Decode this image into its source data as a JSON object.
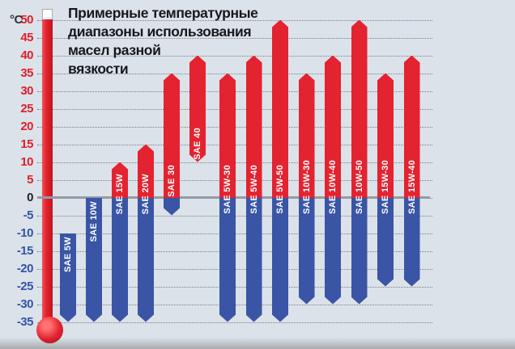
{
  "title": {
    "lines": [
      "Примерные температурные",
      "диапазоны использования",
      "масел разной",
      "вязкости"
    ]
  },
  "axis": {
    "unit": "°C",
    "ticks": [
      50,
      45,
      40,
      35,
      30,
      25,
      20,
      15,
      10,
      5,
      0,
      -5,
      -10,
      -15,
      -20,
      -25,
      -30,
      -35
    ]
  },
  "colors": {
    "background": "#dce2e9",
    "red": "#e32330",
    "blue": "#3a55a5",
    "zero_line": "#949ba5",
    "tick_positive": "#de1f2d",
    "tick_negative": "#2f55a8",
    "tick_zero": "#1d1e22"
  },
  "chart_data": {
    "type": "bar",
    "title": "Примерные температурные диапазоны использования масел разной вязкости",
    "ylabel": "°C",
    "ylim": [
      -35,
      50
    ],
    "grid": "dotted horizontal lines every 5°C",
    "legend_position": "none",
    "orientation": "vertical range bars, red above 0°C, blue below 0°C",
    "bars": [
      {
        "label": "SAE 5W",
        "min_c": -35,
        "max_c": -10
      },
      {
        "label": "SAE 10W",
        "min_c": -35,
        "max_c": 0
      },
      {
        "label": "SAE 15W",
        "min_c": -35,
        "max_c": 10
      },
      {
        "label": "SAE 20W",
        "min_c": -35,
        "max_c": 15
      },
      {
        "label": "SAE 30",
        "min_c": -5,
        "max_c": 35
      },
      {
        "label": "SAE 40",
        "min_c": 10,
        "max_c": 40
      },
      {
        "label": "SAE 5W-30",
        "min_c": -35,
        "max_c": 35
      },
      {
        "label": "SAE 5W-40",
        "min_c": -35,
        "max_c": 40
      },
      {
        "label": "SAE 5W-50",
        "min_c": -35,
        "max_c": 50
      },
      {
        "label": "SAE 10W-30",
        "min_c": -30,
        "max_c": 35
      },
      {
        "label": "SAE 10W-40",
        "min_c": -30,
        "max_c": 40
      },
      {
        "label": "SAE 10W-50",
        "min_c": -30,
        "max_c": 50
      },
      {
        "label": "SAE 15W-30",
        "min_c": -25,
        "max_c": 35
      },
      {
        "label": "SAE 15W-40",
        "min_c": -25,
        "max_c": 40
      }
    ]
  }
}
